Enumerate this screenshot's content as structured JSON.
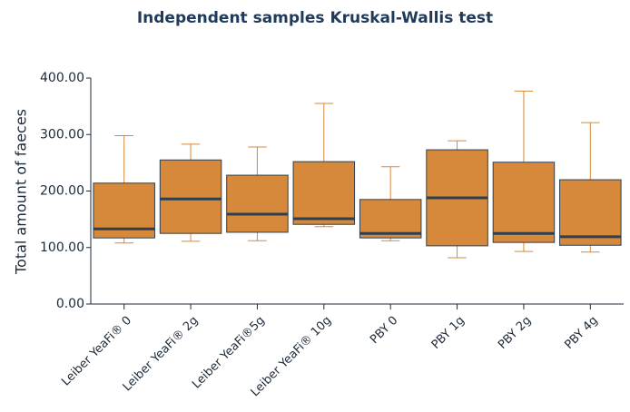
{
  "chart_data": {
    "type": "box",
    "title": "Independent samples Kruskal-Wallis test",
    "y_label": "Total amount of faeces",
    "categories": [
      "Leiber YeaFi® 0",
      "Leiber YeaFi® 2g",
      "Leiber YeaFi®5g",
      "Leiber YeaFi® 10g",
      "PBY 0",
      "PBY 1g",
      "PBY 2g",
      "PBY 4g"
    ],
    "min": [
      108,
      111,
      112,
      137,
      112,
      82,
      93,
      92
    ],
    "q1": [
      117,
      125,
      127,
      141,
      117,
      103,
      109,
      104
    ],
    "median": [
      133,
      186,
      159,
      151,
      125,
      188,
      125,
      119
    ],
    "q3": [
      214,
      255,
      228,
      252,
      185,
      273,
      251,
      220
    ],
    "max": [
      298,
      283,
      278,
      355,
      243,
      289,
      377,
      321
    ],
    "color": "#d6893a",
    "edge_color": "#2e3f52",
    "whisker_color": "#d6893a",
    "ylim": [
      0,
      400
    ],
    "yticks": [
      {
        "value": 0,
        "label": "0.00"
      },
      {
        "value": 100,
        "label": "100.00"
      },
      {
        "value": 200,
        "label": "200.00"
      },
      {
        "value": 300,
        "label": "300.00"
      },
      {
        "value": 400,
        "label": "400.00"
      }
    ]
  }
}
